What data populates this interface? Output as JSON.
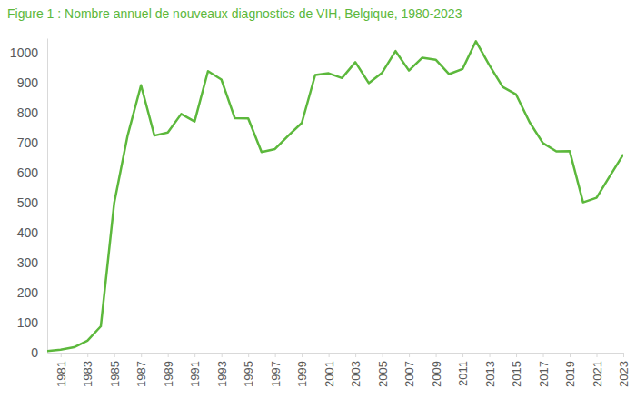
{
  "chart_data": {
    "type": "line",
    "title": "Figure 1 : Nombre annuel de nouveaux diagnostics de VIH, Belgique, 1980-2023",
    "x": [
      1980,
      1981,
      1982,
      1983,
      1984,
      1985,
      1986,
      1987,
      1988,
      1989,
      1990,
      1991,
      1992,
      1993,
      1994,
      1995,
      1996,
      1997,
      1998,
      1999,
      2000,
      2001,
      2002,
      2003,
      2004,
      2005,
      2006,
      2007,
      2008,
      2009,
      2010,
      2011,
      2012,
      2013,
      2014,
      2015,
      2016,
      2017,
      2018,
      2019,
      2020,
      2021,
      2022,
      2023
    ],
    "values": [
      5,
      10,
      18,
      40,
      88,
      500,
      725,
      893,
      725,
      735,
      797,
      772,
      940,
      912,
      783,
      782,
      670,
      680,
      725,
      767,
      927,
      933,
      917,
      970,
      900,
      935,
      1007,
      942,
      985,
      978,
      930,
      947,
      1040,
      960,
      887,
      862,
      770,
      700,
      672,
      673,
      502,
      517,
      590,
      662
    ],
    "color": "#5cb83c",
    "xlim": [
      1980,
      2023
    ],
    "xticks": [
      1981,
      1983,
      1985,
      1987,
      1989,
      1991,
      1993,
      1995,
      1997,
      1999,
      2001,
      2003,
      2005,
      2007,
      2009,
      2011,
      2013,
      2015,
      2017,
      2019,
      2021,
      2023
    ],
    "ylim": [
      0,
      1050
    ],
    "yticks": [
      0,
      100,
      200,
      300,
      400,
      500,
      600,
      700,
      800,
      900,
      1000
    ],
    "grid": false
  }
}
